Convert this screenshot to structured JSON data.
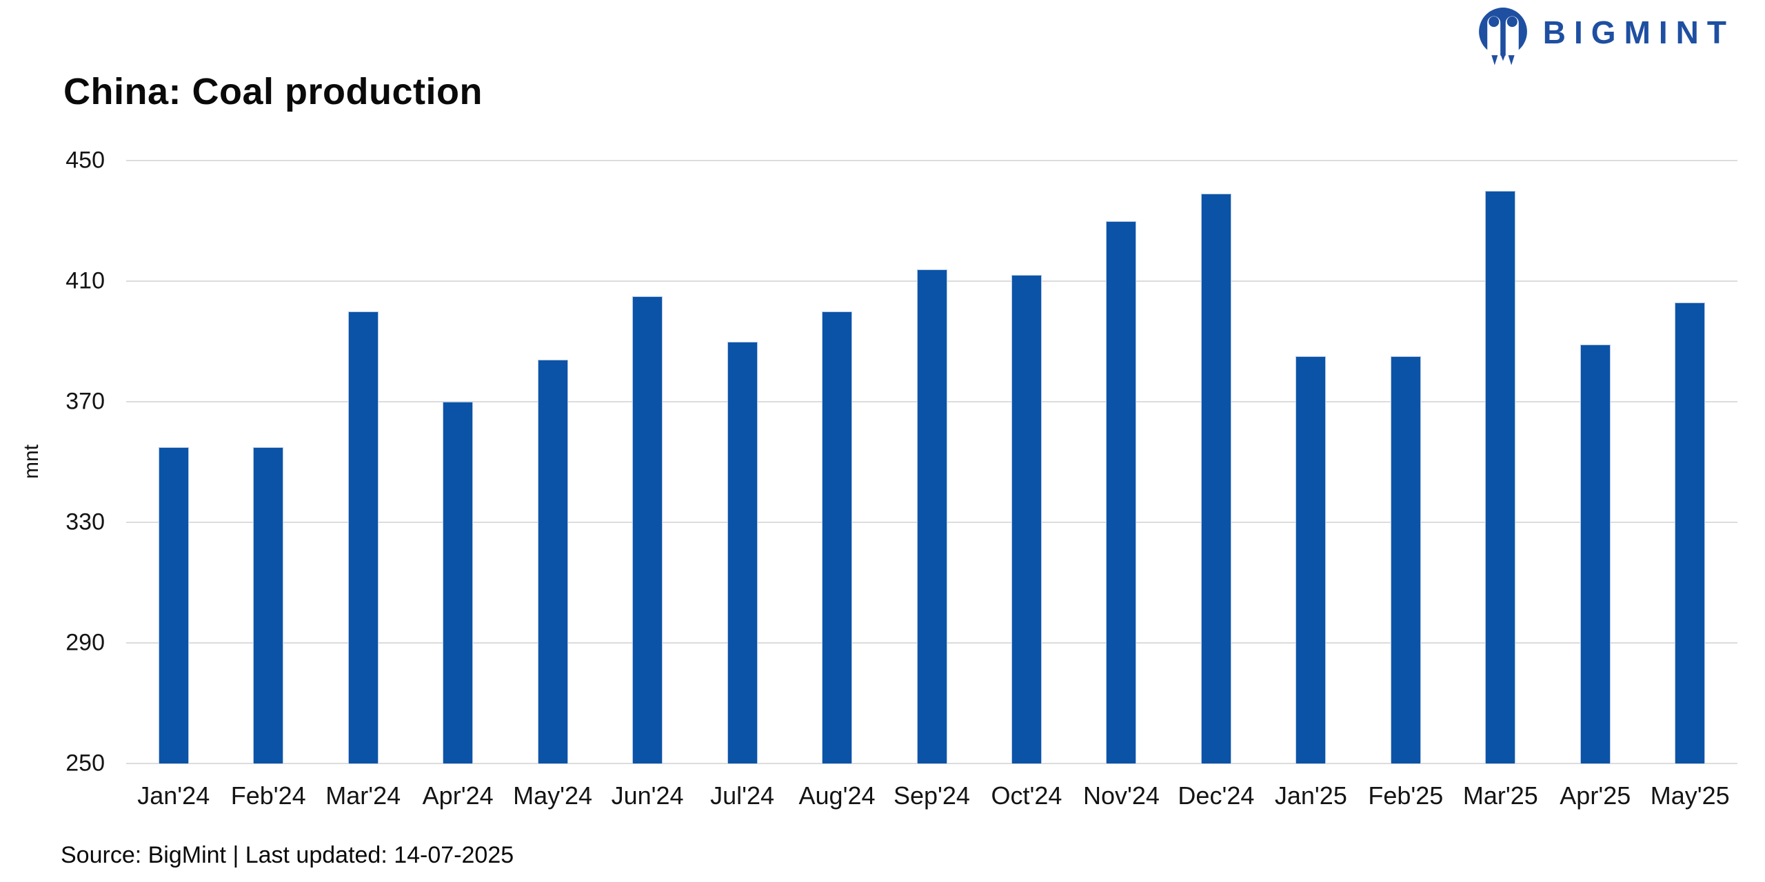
{
  "brand": {
    "name": "BIGMINT",
    "logo_color": "#1e4fa1",
    "logo_mark": "bigmint-two-figures-mark"
  },
  "chart_data": {
    "type": "bar",
    "title": "China: Coal production",
    "xlabel": "",
    "ylabel": "mnt",
    "ylim": [
      250,
      450
    ],
    "yticks": [
      250,
      290,
      330,
      370,
      410,
      450
    ],
    "grid": true,
    "legend_position": "none",
    "bar_color": "#0b53a6",
    "bar_edge_color": "#b5c9e8",
    "gridline_color": "#dcdcdc",
    "categories": [
      "Jan'24",
      "Feb'24",
      "Mar'24",
      "Apr'24",
      "May'24",
      "Jun'24",
      "Jul'24",
      "Aug'24",
      "Sep'24",
      "Oct'24",
      "Nov'24",
      "Dec'24",
      "Jan'25",
      "Feb'25",
      "Mar'25",
      "Apr'25",
      "May'25"
    ],
    "values": [
      355,
      355,
      400,
      370,
      384,
      405,
      390,
      400,
      414,
      412,
      430,
      439,
      385,
      385,
      440,
      389,
      403
    ]
  },
  "footer": {
    "source_line": "Source: BigMint | Last updated: 14-07-2025"
  }
}
